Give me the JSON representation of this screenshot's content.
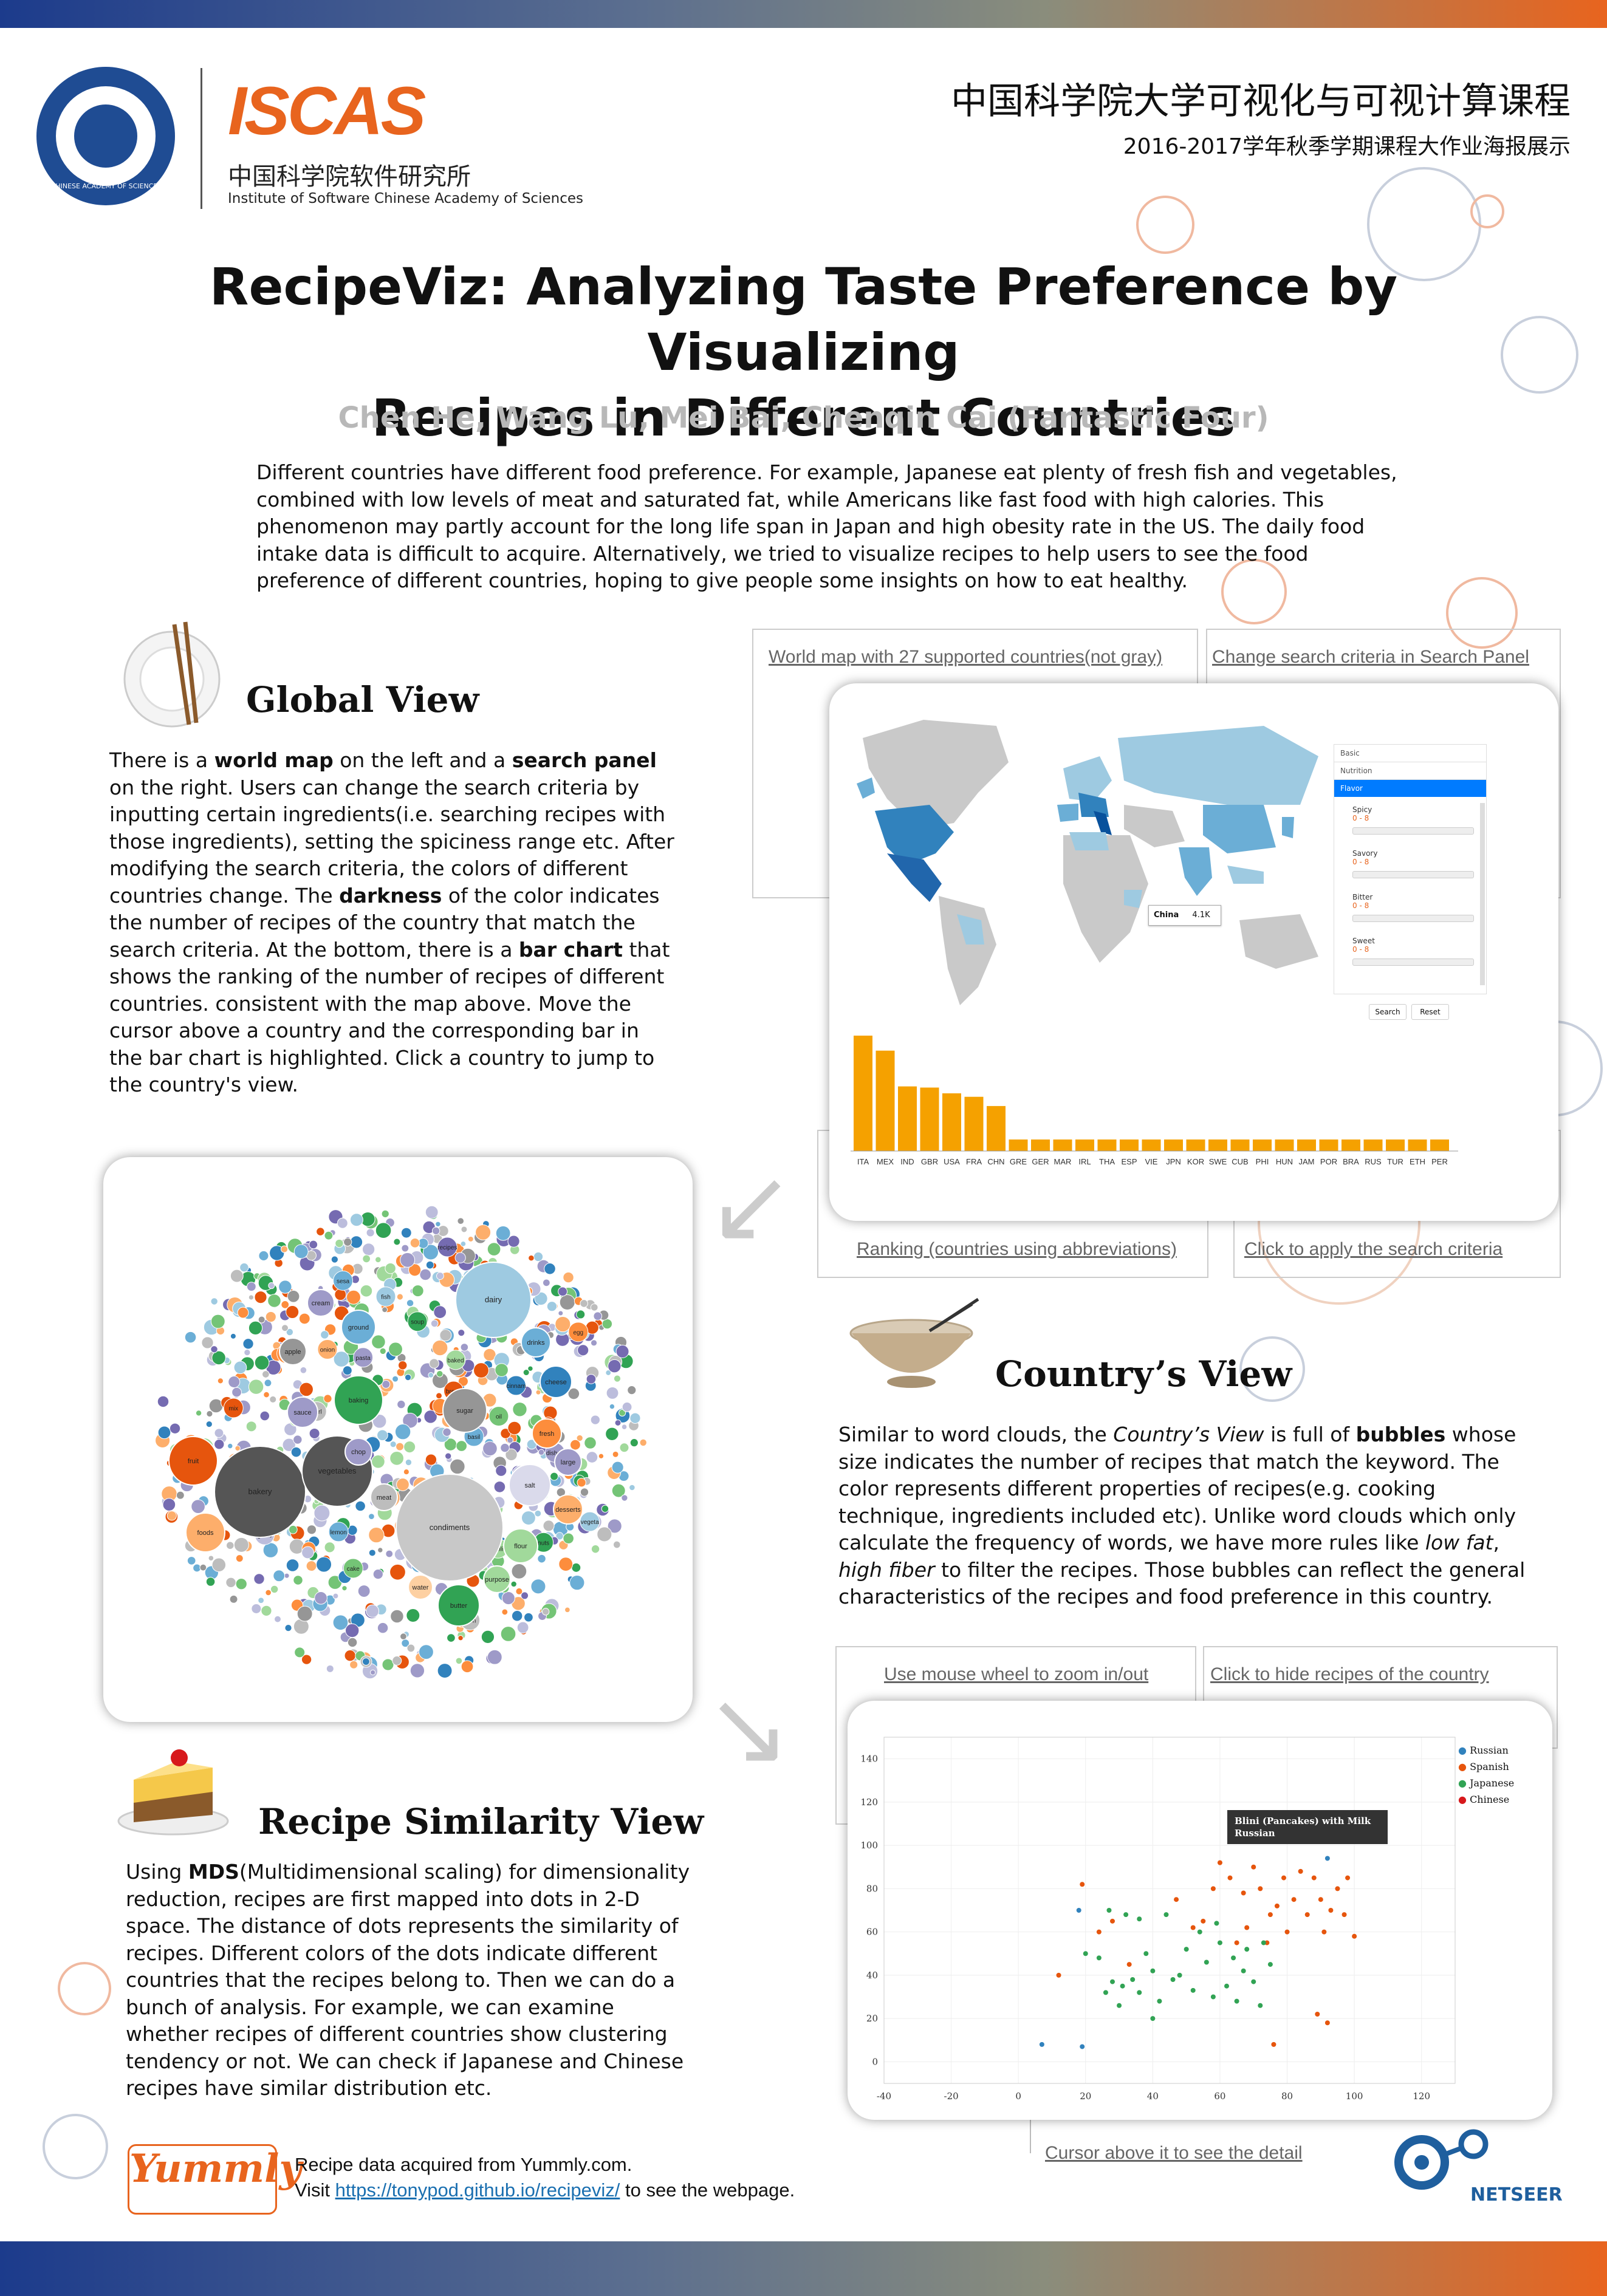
{
  "header": {
    "institute_cn": "中国科学院软件研究所",
    "institute_en": "Institute of Software Chinese Academy of Sciences",
    "logo_text": "ISCAS",
    "seal_text": "CHINESE ACADEMY OF SCIENCES",
    "course_cn_1": "中国科学院大学可视化与可视计算课程",
    "course_cn_2": "2016-2017学年秋季学期课程大作业海报展示"
  },
  "title_line1": "RecipeViz: Analyzing Taste Preference by Visualizing",
  "title_line2": "Recipes in Different Countries",
  "authors": "Chen He, Wang Lu, Mei Bai, Chenqin Cai (Fantastic Four)",
  "intro": "Different countries have different food preference. For example, Japanese eat plenty of fresh fish and vegetables, combined with low levels of meat and saturated fat, while Americans like fast food with high calories. This phenomenon may partly account for the long life span in Japan and high obesity rate in the US. The daily food intake data is difficult to acquire. Alternatively, we tried to visualize recipes to help users to see the food preference of different countries, hoping to give people some insights on how to eat healthy.",
  "global_view": {
    "heading": "Global View",
    "p": [
      "There is a ",
      "world map",
      " on the left and a ",
      "search panel",
      " on the right. Users can change the search criteria by inputting certain ingredients(i.e. searching recipes with those ingredients), setting the spiciness range etc. After modifying the search criteria, the colors of different countries change. The ",
      "darkness",
      " of the color indicates the number of recipes of the country that match the search criteria. At the bottom, there is a ",
      "bar chart",
      " that shows the ranking of the number of recipes of different countries. consistent with the map above. Move the cursor above a country and the corresponding bar in the bar chart is highlighted. Click a country to jump to the country's view."
    ],
    "cap_map": "World map with 27 supported countries(not gray)",
    "cap_search": "Change search criteria in Search Panel",
    "cap_ranking": "Ranking (countries using abbreviations)",
    "cap_apply": "Click to apply the search criteria",
    "panel": {
      "tabs": [
        "Basic",
        "Nutrition",
        "Flavor"
      ],
      "sliders": [
        {
          "label": "Spicy",
          "range": "0 - 8"
        },
        {
          "label": "Savory",
          "range": "0 - 8"
        },
        {
          "label": "Bitter",
          "range": "0 - 8"
        },
        {
          "label": "Sweet",
          "range": "0 - 8"
        }
      ],
      "search_btn": "Search",
      "reset_btn": "Reset"
    },
    "tooltip": {
      "country": "China",
      "value": "4.1K"
    },
    "bars": {
      "categories": [
        "ITA",
        "MEX",
        "IND",
        "GBR",
        "USA",
        "FRA",
        "CHN",
        "GRE",
        "GER",
        "MAR",
        "IRL",
        "THA",
        "ESP",
        "VIE",
        "JPN",
        "KOR",
        "SWE",
        "CUB",
        "PHI",
        "HUN",
        "JAM",
        "POR",
        "BRA",
        "RUS",
        "TUR",
        "ETH",
        "PER"
      ],
      "values": [
        100,
        87,
        56,
        55,
        50,
        47,
        39,
        10,
        10,
        10,
        10,
        10,
        10,
        10,
        10,
        10,
        10,
        10,
        10,
        10,
        10,
        10,
        10,
        10,
        10,
        10,
        10
      ],
      "ymax": 100
    }
  },
  "country_view": {
    "heading": "Country’s View",
    "p": [
      "Similar to word clouds, the ",
      "Country’s View",
      " is full of ",
      "bubbles",
      " whose size indicates the number of recipes that match the keyword. The color represents different properties of recipes(e.g. cooking technique, ingredients included etc). Unlike word clouds which only calculate the frequency of words, we have more rules like ",
      "low fat",
      ", ",
      "high fiber",
      " to filter the recipes. Those bubbles can reflect the general characteristics of the recipes and food preference in this country."
    ],
    "bubbles": [
      {
        "t": "condiments",
        "r": 88,
        "c": "#c8c8c8",
        "x": 740,
        "y": 2515
      },
      {
        "t": "bakery",
        "r": 75,
        "c": "#555555",
        "x": 428,
        "y": 2456
      },
      {
        "t": "vegetables",
        "r": 58,
        "c": "#555555",
        "x": 555,
        "y": 2422
      },
      {
        "t": "dairy",
        "r": 62,
        "c": "#9ecae1",
        "x": 812,
        "y": 2140
      },
      {
        "t": "baking",
        "r": 40,
        "c": "#31a354",
        "x": 590,
        "y": 2305
      },
      {
        "t": "fruit",
        "r": 40,
        "c": "#e6550d",
        "x": 318,
        "y": 2405
      },
      {
        "t": "sugar",
        "r": 36,
        "c": "#969696",
        "x": 765,
        "y": 2322
      },
      {
        "t": "salt",
        "r": 34,
        "c": "#dadaeb",
        "x": 872,
        "y": 2445
      },
      {
        "t": "butter",
        "r": 34,
        "c": "#31a354",
        "x": 755,
        "y": 2643
      },
      {
        "t": "foods",
        "r": 32,
        "c": "#fdae6b",
        "x": 338,
        "y": 2523
      },
      {
        "t": "flour",
        "r": 28,
        "c": "#a1d99b",
        "x": 857,
        "y": 2545
      },
      {
        "t": "ground",
        "r": 28,
        "c": "#6baed6",
        "x": 590,
        "y": 2185
      },
      {
        "t": "cheese",
        "r": 26,
        "c": "#3182bd",
        "x": 915,
        "y": 2275
      },
      {
        "t": "drinks",
        "r": 24,
        "c": "#6baed6",
        "x": 882,
        "y": 2210
      },
      {
        "t": "fresh",
        "r": 24,
        "c": "#fd8d3c",
        "x": 900,
        "y": 2360
      },
      {
        "t": "sauce",
        "r": 25,
        "c": "#9e9ac8",
        "x": 498,
        "y": 2325
      },
      {
        "t": "meat",
        "r": 22,
        "c": "#bdbdbd",
        "x": 632,
        "y": 2465
      },
      {
        "t": "desserts",
        "r": 24,
        "c": "#fdae6b",
        "x": 935,
        "y": 2485
      },
      {
        "t": "cream",
        "r": 22,
        "c": "#9e9ac8",
        "x": 528,
        "y": 2145
      },
      {
        "t": "apple",
        "r": 22,
        "c": "#969696",
        "x": 482,
        "y": 2225
      },
      {
        "t": "large",
        "r": 22,
        "c": "#9e9ac8",
        "x": 935,
        "y": 2407
      },
      {
        "t": "purpose",
        "r": 22,
        "c": "#a1d99b",
        "x": 818,
        "y": 2600
      },
      {
        "t": "water",
        "r": 20,
        "c": "#fdd0a2",
        "x": 692,
        "y": 2613
      },
      {
        "t": "chop",
        "r": 22,
        "c": "#9e9ac8",
        "x": 590,
        "y": 2390
      }
    ],
    "small_words": [
      "basil",
      "herbs",
      "soup",
      "chili",
      "mix",
      "egg",
      "rice",
      "pasta",
      "tofu",
      "peas",
      "ginger",
      "corn",
      "milk",
      "oil",
      "lemon",
      "fish",
      "nuts",
      "beans",
      "bread",
      "snack",
      "onion",
      "dishes",
      "garlic",
      "recipes",
      "pepper",
      "garl",
      "cinnam",
      "cake",
      "sesa",
      "vegeta",
      "bacon",
      "baked",
      "pie",
      "bean"
    ]
  },
  "similarity_view": {
    "heading": "Recipe Similarity View",
    "p": [
      "Using ",
      "MDS",
      "(Multidimensional scaling) for dimensionality reduction, recipes are first mapped into dots in 2-D space. The distance of dots represents the similarity of recipes. Different colors of the dots indicate different countries that the recipes belong to. Then we can do a bunch of analysis. For example, we can examine whether recipes of different countries show clustering tendency or not. We can check if Japanese and Chinese recipes have similar distribution etc."
    ],
    "cap_zoom": "Use mouse wheel to zoom in/out",
    "cap_hide": "Click to hide recipes of the country",
    "cap_cursor": "Cursor above it to see the detail",
    "tooltip": "Blini (Pancakes) with Milk Russian",
    "chart_data": {
      "type": "scatter",
      "xlim": [
        -40,
        130
      ],
      "ylim": [
        -10,
        150
      ],
      "xticks": [
        -40,
        -20,
        0,
        20,
        40,
        60,
        80,
        100,
        120
      ],
      "yticks": [
        0,
        20,
        40,
        60,
        80,
        100,
        120,
        140
      ],
      "legend_position": "top-right",
      "series": [
        {
          "name": "Russian",
          "color": "#3182bd",
          "points": [
            [
              7,
              8
            ],
            [
              18,
              70
            ],
            [
              19,
              7
            ],
            [
              92,
              94
            ]
          ]
        },
        {
          "name": "Spanish",
          "color": "#e6550d",
          "points": [
            [
              12,
              40
            ],
            [
              19,
              82
            ],
            [
              24,
              60
            ],
            [
              28,
              65
            ],
            [
              33,
              45
            ],
            [
              47,
              75
            ],
            [
              52,
              62
            ],
            [
              55,
              65
            ],
            [
              58,
              80
            ],
            [
              60,
              92
            ],
            [
              63,
              85
            ],
            [
              65,
              55
            ],
            [
              67,
              78
            ],
            [
              68,
              62
            ],
            [
              70,
              90
            ],
            [
              72,
              80
            ],
            [
              74,
              55
            ],
            [
              75,
              68
            ],
            [
              77,
              72
            ],
            [
              79,
              85
            ],
            [
              80,
              60
            ],
            [
              82,
              75
            ],
            [
              84,
              88
            ],
            [
              86,
              68
            ],
            [
              88,
              85
            ],
            [
              90,
              75
            ],
            [
              91,
              60
            ],
            [
              93,
              70
            ],
            [
              95,
              80
            ],
            [
              97,
              68
            ],
            [
              98,
              85
            ],
            [
              100,
              58
            ],
            [
              76,
              8
            ],
            [
              89,
              22
            ],
            [
              92,
              18
            ]
          ]
        },
        {
          "name": "Japanese",
          "color": "#31a354",
          "points": [
            [
              20,
              50
            ],
            [
              24,
              48
            ],
            [
              26,
              32
            ],
            [
              27,
              70
            ],
            [
              28,
              37
            ],
            [
              30,
              26
            ],
            [
              31,
              35
            ],
            [
              32,
              68
            ],
            [
              34,
              38
            ],
            [
              36,
              66
            ],
            [
              38,
              50
            ],
            [
              40,
              42
            ],
            [
              42,
              28
            ],
            [
              44,
              68
            ],
            [
              46,
              38
            ],
            [
              48,
              40
            ],
            [
              50,
              52
            ],
            [
              52,
              33
            ],
            [
              54,
              60
            ],
            [
              56,
              46
            ],
            [
              58,
              30
            ],
            [
              59,
              64
            ],
            [
              60,
              55
            ],
            [
              62,
              35
            ],
            [
              64,
              48
            ],
            [
              65,
              28
            ],
            [
              67,
              42
            ],
            [
              68,
              52
            ],
            [
              70,
              37
            ],
            [
              72,
              26
            ],
            [
              73,
              55
            ],
            [
              75,
              45
            ],
            [
              36,
              32
            ],
            [
              40,
              20
            ]
          ]
        },
        {
          "name": "Chinese",
          "color": "#fd8d3c",
          "points": []
        }
      ]
    }
  },
  "footer": {
    "logo": "Yummly",
    "line1": "Recipe data acquired from Yummly.com.",
    "line2_pre": "Visit ",
    "link": "https://tonypod.github.io/recipeviz/",
    "line2_post": " to see the webpage.",
    "netseer": "NETSEER"
  }
}
